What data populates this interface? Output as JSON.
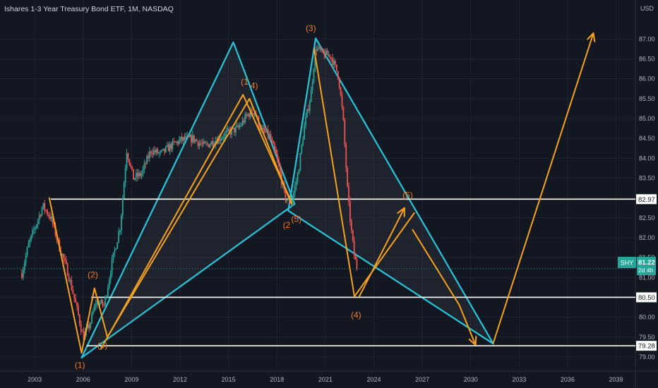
{
  "chart_data": {
    "type": "candlestick",
    "title": "Ishares 1-3 Year Treasury Bond ETF, 1M, NASDAQ",
    "currency": "USD",
    "x_ticks": [
      "2003",
      "2006",
      "2009",
      "2012",
      "2015",
      "2018",
      "2021",
      "2024",
      "2027",
      "2030",
      "2033",
      "2036",
      "2039"
    ],
    "y_ticks": [
      "79.00",
      "79.50",
      "80.00",
      "80.50",
      "81.00",
      "81.50",
      "82.00",
      "82.50",
      "83.00",
      "83.50",
      "84.00",
      "84.50",
      "85.00",
      "85.50",
      "86.00",
      "86.50",
      "87.00"
    ],
    "ylim": [
      78.75,
      87.45
    ],
    "xlim": [
      2001.2,
      2040.2
    ],
    "colors": {
      "up": "#26a69a",
      "down": "#ef5350",
      "triangle": "#26c6da",
      "wave": "#f7a21b",
      "level": "#ffffff",
      "label": "#f57c1f"
    },
    "price_path": [
      [
        2002.2,
        81.1
      ],
      [
        2002.6,
        81.8
      ],
      [
        2003.1,
        82.35
      ],
      [
        2003.5,
        82.8
      ],
      [
        2004.0,
        82.5
      ],
      [
        2004.5,
        81.8
      ],
      [
        2005.0,
        81.2
      ],
      [
        2005.5,
        80.4
      ],
      [
        2006.0,
        79.5
      ],
      [
        2006.4,
        79.8
      ],
      [
        2006.8,
        80.4
      ],
      [
        2007.3,
        80.3
      ],
      [
        2007.8,
        81.4
      ],
      [
        2008.3,
        82.3
      ],
      [
        2008.7,
        84.2
      ],
      [
        2009.1,
        83.5
      ],
      [
        2009.6,
        83.6
      ],
      [
        2010.2,
        84.2
      ],
      [
        2010.8,
        84.1
      ],
      [
        2011.4,
        84.3
      ],
      [
        2012.0,
        84.45
      ],
      [
        2012.8,
        84.5
      ],
      [
        2013.5,
        84.3
      ],
      [
        2014.2,
        84.45
      ],
      [
        2015.0,
        84.65
      ],
      [
        2015.6,
        84.75
      ],
      [
        2016.2,
        85.1
      ],
      [
        2016.6,
        85.2
      ],
      [
        2017.0,
        84.7
      ],
      [
        2017.5,
        84.6
      ],
      [
        2018.0,
        84.0
      ],
      [
        2018.5,
        83.0
      ],
      [
        2018.9,
        82.9
      ],
      [
        2019.3,
        83.6
      ],
      [
        2019.7,
        84.8
      ],
      [
        2020.1,
        85.6
      ],
      [
        2020.4,
        86.8
      ],
      [
        2020.9,
        86.6
      ],
      [
        2021.3,
        86.6
      ],
      [
        2021.8,
        86.1
      ],
      [
        2022.1,
        85.0
      ],
      [
        2022.4,
        83.0
      ],
      [
        2022.6,
        82.2
      ],
      [
        2022.8,
        81.5
      ],
      [
        2023.0,
        81.2
      ]
    ],
    "triangles": [
      {
        "points": [
          [
            2005.9,
            78.98
          ],
          [
            2015.3,
            86.92
          ],
          [
            2019.1,
            82.85
          ]
        ]
      },
      {
        "points": [
          [
            2018.7,
            82.68
          ],
          [
            2020.4,
            87.02
          ],
          [
            2031.4,
            79.33
          ]
        ]
      }
    ],
    "wave_lines": [
      {
        "points": [
          [
            2003.9,
            83.0
          ],
          [
            2005.9,
            79.1
          ],
          [
            2006.7,
            80.73
          ],
          [
            2007.5,
            79.5
          ],
          [
            2016.3,
            85.5
          ],
          [
            2018.9,
            82.85
          ]
        ]
      },
      {
        "points": [
          [
            2007.1,
            79.2
          ],
          [
            2015.9,
            85.6
          ],
          [
            2018.9,
            82.9
          ]
        ]
      },
      {
        "points": [
          [
            2020.3,
            86.75
          ],
          [
            2022.8,
            80.52
          ],
          [
            2026.5,
            82.62
          ]
        ]
      },
      {
        "points": [
          [
            2023.1,
            80.52
          ],
          [
            2025.9,
            82.75
          ]
        ]
      },
      {
        "points": [
          [
            2026.4,
            82.2
          ],
          [
            2029.3,
            80.3
          ],
          [
            2030.3,
            79.3
          ]
        ]
      },
      {
        "points": [
          [
            2031.4,
            79.35
          ],
          [
            2037.6,
            87.15
          ]
        ]
      }
    ],
    "wave_arrows": [
      {
        "from": [
          2023.1,
          80.52
        ],
        "to": [
          2025.9,
          82.75
        ]
      },
      {
        "from": [
          2029.3,
          80.3
        ],
        "to": [
          2030.3,
          79.3
        ]
      },
      {
        "from": [
          2031.4,
          79.35
        ],
        "to": [
          2037.6,
          87.15
        ]
      }
    ],
    "horizontal_levels": [
      {
        "label": "82.97",
        "value": 82.97,
        "x_from": 2004.0
      },
      {
        "label": "80.50",
        "value": 80.5,
        "x_from": 2006.5
      },
      {
        "label": "79.28",
        "value": 79.28,
        "x_from": 2006.2
      }
    ],
    "wave_labels": [
      {
        "text": "(1)",
        "x": 2005.8,
        "y": 78.72
      },
      {
        "text": "(2)",
        "x": 2006.6,
        "y": 81.0
      },
      {
        "text": "(3)",
        "x": 2007.2,
        "y": 79.22
      },
      {
        "text": "(1",
        "x": 2016.0,
        "y": 85.85
      },
      {
        "text": "4)",
        "x": 2016.6,
        "y": 85.75
      },
      {
        "text": "(3)",
        "x": 2020.1,
        "y": 87.2
      },
      {
        "text": "(2",
        "x": 2018.6,
        "y": 82.25
      },
      {
        "text": "(5)",
        "x": 2019.2,
        "y": 82.4
      },
      {
        "text": "(4)",
        "x": 2022.9,
        "y": 79.98
      },
      {
        "text": "(5)",
        "x": 2026.1,
        "y": 83.0
      }
    ],
    "current_price": {
      "symbol": "SHY",
      "price": "81.22",
      "countdown": "2d 4h",
      "value": 81.22
    }
  }
}
